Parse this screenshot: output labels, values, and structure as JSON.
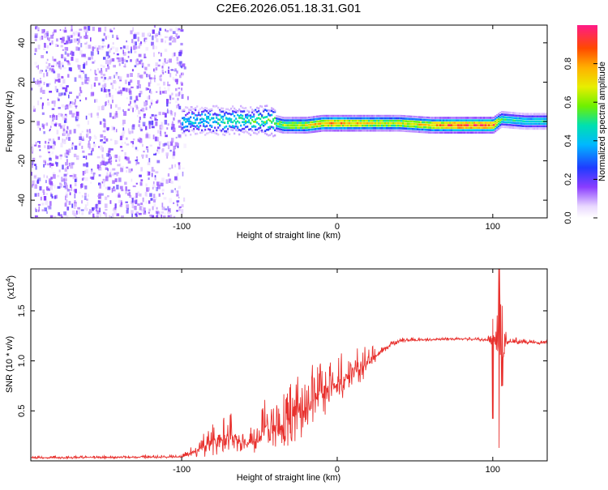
{
  "title": "C2E6.2026.051.18.31.G01",
  "chart_data": [
    {
      "type": "heatmap",
      "name": "spectrogram",
      "xlabel": "Height of straight line (km)",
      "ylabel": "Frequency (Hz)",
      "xlim": [
        -197,
        135
      ],
      "ylim": [
        -49,
        49
      ],
      "xticks": [
        -100,
        0,
        100
      ],
      "xtick_labels": [
        "-100",
        "0",
        "100"
      ],
      "yticks": [
        -40,
        -20,
        0,
        20,
        40
      ],
      "ytick_labels": [
        "-40",
        "-20",
        "0",
        "20",
        "40"
      ],
      "noise_region": {
        "x": [
          -197,
          -100
        ],
        "y": [
          -49,
          49
        ],
        "amplitude": 0.15
      },
      "ridge": {
        "x": [
          -100,
          -80,
          -60,
          -45,
          -35,
          -20,
          -10,
          0,
          10,
          20,
          40,
          60,
          80,
          100,
          105,
          120,
          135
        ],
        "y": [
          0,
          0,
          0,
          0,
          -2,
          -2,
          -1,
          -1,
          -1,
          -1,
          -1,
          -2,
          -2,
          -2,
          1,
          0,
          0
        ],
        "amplitude": [
          0.4,
          0.45,
          0.5,
          0.55,
          0.6,
          0.7,
          0.75,
          0.8,
          0.75,
          0.7,
          0.65,
          0.75,
          0.9,
          0.85,
          0.5,
          0.45,
          0.45
        ]
      },
      "colorbar": {
        "label": "Normalized spectral amplitude",
        "range": [
          0,
          1
        ],
        "ticks": [
          0.0,
          0.2,
          0.4,
          0.6,
          0.8
        ],
        "tick_labels": [
          "0.0",
          "0.2",
          "0.4",
          "0.6",
          "0.8"
        ]
      }
    },
    {
      "type": "line",
      "name": "snr",
      "xlabel": "Height of straight line (km)",
      "ylabel": "SNR (10 * v/v)",
      "scale_label": "(x10",
      "scale_exponent": "4",
      "scale_close": ")",
      "xlim": [
        -197,
        135
      ],
      "ylim": [
        0,
        1.92
      ],
      "xticks": [
        -100,
        0,
        100
      ],
      "xtick_labels": [
        "-100",
        "0",
        "100"
      ],
      "yticks": [
        0.5,
        1.0,
        1.5
      ],
      "ytick_labels": [
        "0.5",
        "1.0",
        "1.5"
      ],
      "color": "#e8312e",
      "envelope": {
        "x": [
          -197,
          -100,
          -90,
          -80,
          -70,
          -60,
          -50,
          -45,
          -40,
          -30,
          -20,
          -10,
          0,
          10,
          20,
          30,
          40,
          60,
          80,
          95,
          100,
          105,
          110,
          135
        ],
        "base": [
          0.03,
          0.04,
          0.1,
          0.2,
          0.25,
          0.15,
          0.2,
          0.35,
          0.3,
          0.4,
          0.55,
          0.65,
          0.78,
          0.88,
          0.98,
          1.12,
          1.2,
          1.21,
          1.22,
          1.21,
          1.2,
          1.2,
          1.19,
          1.18
        ],
        "amp": [
          0.015,
          0.02,
          0.1,
          0.28,
          0.3,
          0.12,
          0.2,
          0.38,
          0.3,
          0.38,
          0.4,
          0.35,
          0.3,
          0.3,
          0.18,
          0.05,
          0.03,
          0.02,
          0.02,
          0.02,
          0.1,
          0.4,
          0.05,
          0.02
        ]
      },
      "features": [
        {
          "x": 100,
          "min": 0.42,
          "max": 1.42
        },
        {
          "x": 104,
          "min": 0.13,
          "max": 1.92
        },
        {
          "x": 106,
          "min": 0.75,
          "max": 1.55
        }
      ]
    }
  ]
}
